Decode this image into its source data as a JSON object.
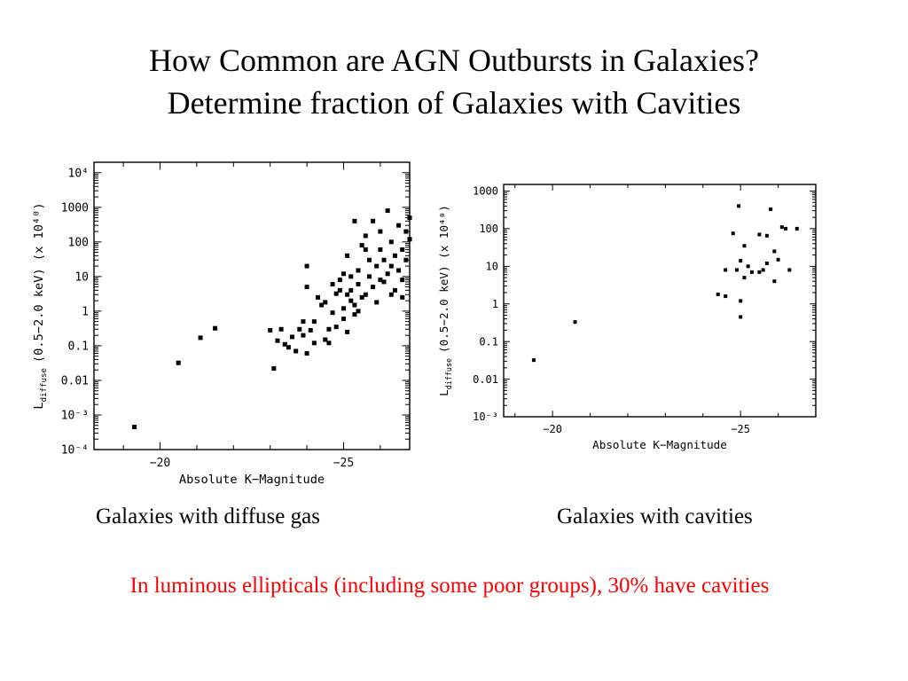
{
  "slide": {
    "title_line1": "How Common are AGN Outbursts in Galaxies?",
    "title_line2": "Determine fraction of Galaxies with Cavities",
    "caption_left": "Galaxies with diffuse gas",
    "caption_right": "Galaxies with cavities",
    "note": "In luminous ellipticals (including some poor groups), 30% have cavities",
    "note_color": "#ff0000"
  },
  "chart_data": [
    {
      "type": "scatter",
      "xlabel": "Absolute K−Magnitude",
      "ylabel_prefix": "L",
      "ylabel_sub": "diffuse",
      "ylabel_rest": "(0.5−2.0 keV) (x 10⁴⁰)",
      "xlim": [
        -18.2,
        -26.8
      ],
      "ylim": [
        0.0001,
        20000
      ],
      "yscale": "log",
      "xticks": [
        -20,
        -25
      ],
      "xtick_labels": [
        "−20",
        "−25"
      ],
      "yticks": [
        10000,
        1000,
        100,
        10,
        1,
        0.1,
        0.01,
        0.001,
        0.0001
      ],
      "ytick_labels": [
        "10⁴",
        "1000",
        "100",
        "10",
        "1",
        "0.1",
        "0.01",
        "10⁻³",
        "10⁻⁴"
      ],
      "grid": false,
      "points": [
        [
          -19.3,
          0.00045
        ],
        [
          -20.5,
          0.032
        ],
        [
          -21.1,
          0.17
        ],
        [
          -21.5,
          0.32
        ],
        [
          -23.0,
          0.28
        ],
        [
          -23.1,
          0.022
        ],
        [
          -23.2,
          0.14
        ],
        [
          -23.3,
          0.3
        ],
        [
          -23.4,
          0.11
        ],
        [
          -23.5,
          0.09
        ],
        [
          -23.6,
          0.18
        ],
        [
          -23.7,
          0.07
        ],
        [
          -23.8,
          0.3
        ],
        [
          -23.9,
          0.2
        ],
        [
          -24.0,
          0.06
        ],
        [
          -24.0,
          5.0
        ],
        [
          -24.1,
          0.28
        ],
        [
          -24.2,
          0.12
        ],
        [
          -24.2,
          0.5
        ],
        [
          -24.3,
          2.5
        ],
        [
          -24.4,
          1.5
        ],
        [
          -24.5,
          1.8
        ],
        [
          -24.6,
          0.3
        ],
        [
          -24.6,
          0.12
        ],
        [
          -24.7,
          0.9
        ],
        [
          -24.8,
          0.35
        ],
        [
          -24.8,
          3.2
        ],
        [
          -24.9,
          4.0
        ],
        [
          -24.9,
          8.0
        ],
        [
          -25.0,
          0.6
        ],
        [
          -25.0,
          1.2
        ],
        [
          -25.0,
          12.0
        ],
        [
          -25.1,
          3.0
        ],
        [
          -25.1,
          0.25
        ],
        [
          -25.1,
          40.0
        ],
        [
          -25.2,
          2.0
        ],
        [
          -25.2,
          4.0
        ],
        [
          -25.3,
          0.8
        ],
        [
          -25.3,
          400.0
        ],
        [
          -25.3,
          1.5
        ],
        [
          -25.4,
          6.0
        ],
        [
          -25.4,
          15.0
        ],
        [
          -25.5,
          2.5
        ],
        [
          -25.5,
          80.0
        ],
        [
          -25.6,
          3.0
        ],
        [
          -25.6,
          60.0
        ],
        [
          -25.7,
          10.0
        ],
        [
          -25.8,
          5.0
        ],
        [
          -25.8,
          400.0
        ],
        [
          -25.9,
          20.0
        ],
        [
          -25.9,
          1.8
        ],
        [
          -26.0,
          8.0
        ],
        [
          -26.0,
          60.0
        ],
        [
          -26.1,
          30.0
        ],
        [
          -26.1,
          7.0
        ],
        [
          -26.2,
          12.0
        ],
        [
          -26.2,
          800.0
        ],
        [
          -26.3,
          20.0
        ],
        [
          -26.3,
          100.0
        ],
        [
          -26.4,
          4.0
        ],
        [
          -26.4,
          40.0
        ],
        [
          -26.5,
          300.0
        ],
        [
          -26.5,
          15.0
        ],
        [
          -26.6,
          60.0
        ],
        [
          -26.6,
          8.0
        ],
        [
          -26.7,
          200.0
        ],
        [
          -26.7,
          30.0
        ],
        [
          -26.8,
          500.0
        ],
        [
          -26.8,
          120.0
        ],
        [
          -26.9,
          5.0
        ],
        [
          -26.9,
          90.0
        ],
        [
          -27.0,
          50.0
        ],
        [
          -24.0,
          20.0
        ],
        [
          -25.7,
          30.0
        ],
        [
          -26.0,
          200.0
        ],
        [
          -25.4,
          1.0
        ],
        [
          -24.7,
          6.0
        ],
        [
          -25.2,
          10.0
        ],
        [
          -26.3,
          3.0
        ],
        [
          -23.9,
          0.5
        ],
        [
          -24.5,
          0.15
        ],
        [
          -25.6,
          150.0
        ],
        [
          -26.6,
          2.5
        ]
      ]
    },
    {
      "type": "scatter",
      "xlabel": "Absolute K−Magnitude",
      "ylabel_prefix": "L",
      "ylabel_sub": "diffuse",
      "ylabel_rest": "(0.5−2.0 keV) (x 10⁴⁰)",
      "xlim": [
        -18.7,
        -27.0
      ],
      "ylim": [
        0.001,
        1500
      ],
      "yscale": "log",
      "xticks": [
        -20,
        -25
      ],
      "xtick_labels": [
        "−20",
        "−25"
      ],
      "yticks": [
        1000,
        100,
        10,
        1,
        0.1,
        0.01,
        0.001
      ],
      "ytick_labels": [
        "1000",
        "100",
        "10",
        "1",
        "0.1",
        "0.01",
        "10⁻³"
      ],
      "grid": false,
      "points": [
        [
          -19.5,
          0.032
        ],
        [
          -20.6,
          0.33
        ],
        [
          -24.4,
          1.8
        ],
        [
          -24.6,
          1.6
        ],
        [
          -24.6,
          8.0
        ],
        [
          -24.8,
          75.0
        ],
        [
          -24.9,
          8.0
        ],
        [
          -24.95,
          400.0
        ],
        [
          -25.0,
          1.2
        ],
        [
          -25.0,
          0.45
        ],
        [
          -25.0,
          14.0
        ],
        [
          -25.1,
          5.0
        ],
        [
          -25.1,
          35.0
        ],
        [
          -25.2,
          10.0
        ],
        [
          -25.3,
          7.0
        ],
        [
          -25.5,
          7.0
        ],
        [
          -25.5,
          70.0
        ],
        [
          -25.6,
          8.0
        ],
        [
          -25.7,
          12.0
        ],
        [
          -25.7,
          65.0
        ],
        [
          -25.8,
          330.0
        ],
        [
          -25.9,
          4.0
        ],
        [
          -25.9,
          25.0
        ],
        [
          -26.0,
          15.0
        ],
        [
          -26.1,
          110.0
        ],
        [
          -26.2,
          100.0
        ],
        [
          -26.3,
          8.0
        ],
        [
          -26.5,
          100.0
        ]
      ]
    }
  ]
}
